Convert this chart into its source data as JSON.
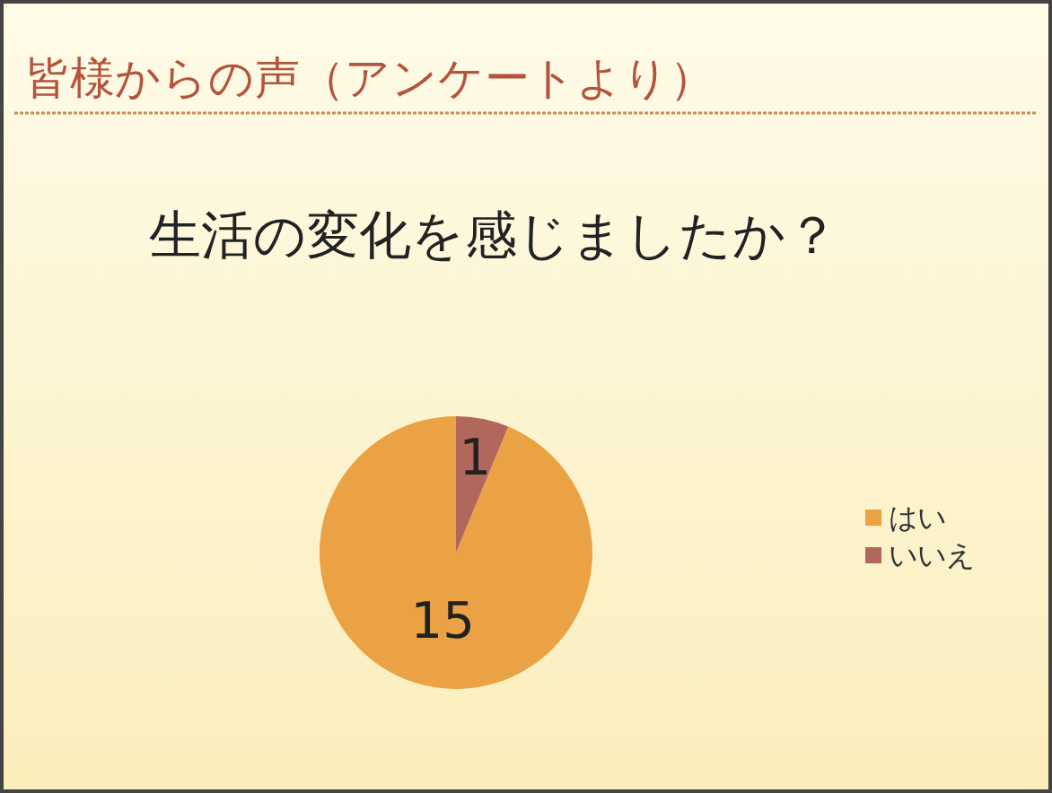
{
  "chart_data": {
    "type": "pie",
    "title": "皆様からの声（アンケートより）",
    "subtitle": "生活の変化を感じましたか？",
    "categories": [
      "はい",
      "いいえ"
    ],
    "values": [
      15,
      1
    ],
    "colors": [
      "#eaa244",
      "#b2675c"
    ],
    "data_labels": true,
    "legend": "right"
  }
}
